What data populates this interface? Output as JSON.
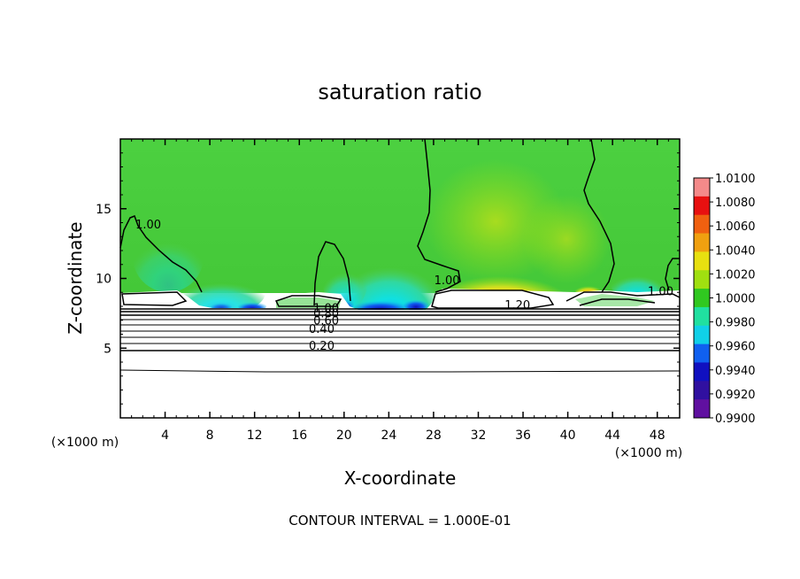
{
  "chart_data": {
    "type": "heatmap",
    "title": "saturation ratio",
    "xlabel": "X-coordinate",
    "ylabel": "Z-coordinate",
    "x_unit": "(×1000 m)",
    "z_unit": "(×1000 m)",
    "footer": "CONTOUR INTERVAL = 1.000E-01",
    "xlim": [
      0,
      50
    ],
    "ylim": [
      0,
      20
    ],
    "x_ticks": [
      "4",
      "8",
      "12",
      "16",
      "20",
      "24",
      "28",
      "32",
      "36",
      "40",
      "44",
      "48"
    ],
    "y_ticks": [
      "5",
      "10",
      "15"
    ],
    "x_tick_values": [
      4,
      8,
      12,
      16,
      20,
      24,
      28,
      32,
      36,
      40,
      44,
      48
    ],
    "y_tick_values": [
      5,
      10,
      15
    ],
    "colorbar": {
      "labels": [
        "1.0100",
        "1.0080",
        "1.0060",
        "1.0040",
        "1.0020",
        "1.0000",
        "0.9980",
        "0.9960",
        "0.9940",
        "0.9920",
        "0.9900"
      ],
      "colors": [
        "#f48a8a",
        "#e81010",
        "#f06010",
        "#f0a010",
        "#e8e010",
        "#a0e010",
        "#30c820",
        "#20e0a0",
        "#10d0e8",
        "#1060f0",
        "#1010c0",
        "#3010a0",
        "#6010a0"
      ]
    },
    "contour_labels": [
      {
        "text": "1.00",
        "x": 2.5,
        "z": 13.6
      },
      {
        "text": "1.00",
        "x": 29.2,
        "z": 9.6
      },
      {
        "text": "1.00",
        "x": 48.3,
        "z": 8.8
      },
      {
        "text": "1.20",
        "x": 35.5,
        "z": 7.8
      },
      {
        "text": "1.00",
        "x": 18.4,
        "z": 7.6
      },
      {
        "text": "0.80",
        "x": 18.4,
        "z": 7.2
      },
      {
        "text": "0.60",
        "x": 18.4,
        "z": 6.7
      },
      {
        "text": "0.40",
        "x": 18.0,
        "z": 6.1
      },
      {
        "text": "0.20",
        "x": 18.0,
        "z": 4.9
      }
    ]
  }
}
